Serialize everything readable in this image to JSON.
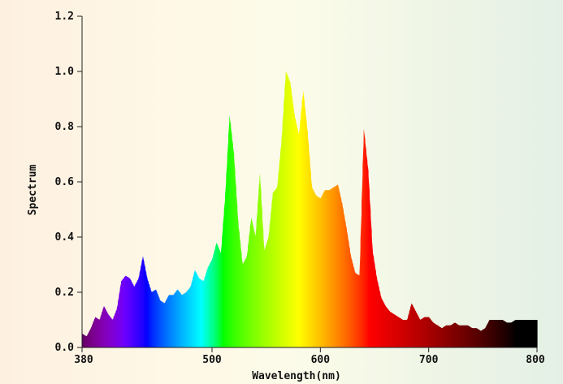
{
  "chart_data": {
    "type": "area",
    "title": "",
    "xlabel": "Wavelength(nm)",
    "ylabel": "Spectrum",
    "xlim": [
      380,
      800
    ],
    "ylim": [
      0,
      1.2
    ],
    "x_ticks": [
      "380",
      "500",
      "600",
      "700",
      "800"
    ],
    "y_ticks": [
      "0.0",
      "0.2",
      "0.4",
      "0.6",
      "0.8",
      "1.0",
      "1.2"
    ],
    "grid": false,
    "fill": "wavelength-colored spectrum",
    "series": [
      {
        "x": [
          380,
          384,
          388,
          392,
          396,
          400,
          404,
          408,
          412,
          416,
          420,
          424,
          428,
          432,
          436,
          440,
          444,
          448,
          452,
          456,
          460,
          464,
          468,
          472,
          476,
          480,
          484,
          488,
          492,
          496,
          500,
          504,
          508,
          512,
          516,
          520,
          524,
          528,
          532,
          536,
          540,
          544,
          548,
          552,
          556,
          560,
          564,
          568,
          572,
          576,
          580,
          584,
          588,
          592,
          596,
          600,
          604,
          608,
          612,
          616,
          620,
          624,
          628,
          632,
          636,
          640,
          644,
          648,
          652,
          656,
          660,
          664,
          668,
          672,
          676,
          680,
          684,
          688,
          692,
          696,
          700,
          704,
          708,
          712,
          716,
          720,
          724,
          728,
          732,
          736,
          740,
          744,
          748,
          752,
          756,
          760,
          764,
          768,
          772,
          776,
          780,
          784,
          788,
          792,
          796,
          800
        ],
        "y": [
          0.05,
          0.04,
          0.07,
          0.11,
          0.1,
          0.15,
          0.12,
          0.1,
          0.14,
          0.24,
          0.26,
          0.25,
          0.22,
          0.25,
          0.33,
          0.25,
          0.2,
          0.21,
          0.17,
          0.16,
          0.19,
          0.19,
          0.21,
          0.19,
          0.2,
          0.22,
          0.28,
          0.25,
          0.24,
          0.29,
          0.32,
          0.38,
          0.34,
          0.55,
          0.84,
          0.7,
          0.45,
          0.3,
          0.33,
          0.47,
          0.4,
          0.63,
          0.35,
          0.4,
          0.56,
          0.58,
          0.75,
          1.0,
          0.96,
          0.84,
          0.77,
          0.93,
          0.78,
          0.58,
          0.55,
          0.54,
          0.57,
          0.57,
          0.58,
          0.59,
          0.52,
          0.43,
          0.33,
          0.27,
          0.26,
          0.79,
          0.64,
          0.35,
          0.25,
          0.18,
          0.15,
          0.13,
          0.12,
          0.11,
          0.1,
          0.1,
          0.16,
          0.13,
          0.1,
          0.11,
          0.11,
          0.09,
          0.08,
          0.07,
          0.08,
          0.08,
          0.09,
          0.08,
          0.08,
          0.08,
          0.07,
          0.07,
          0.06,
          0.07,
          0.1,
          0.1,
          0.1,
          0.1,
          0.09,
          0.09,
          0.1,
          0.1,
          0.1,
          0.1,
          0.1,
          0.1
        ]
      }
    ]
  }
}
